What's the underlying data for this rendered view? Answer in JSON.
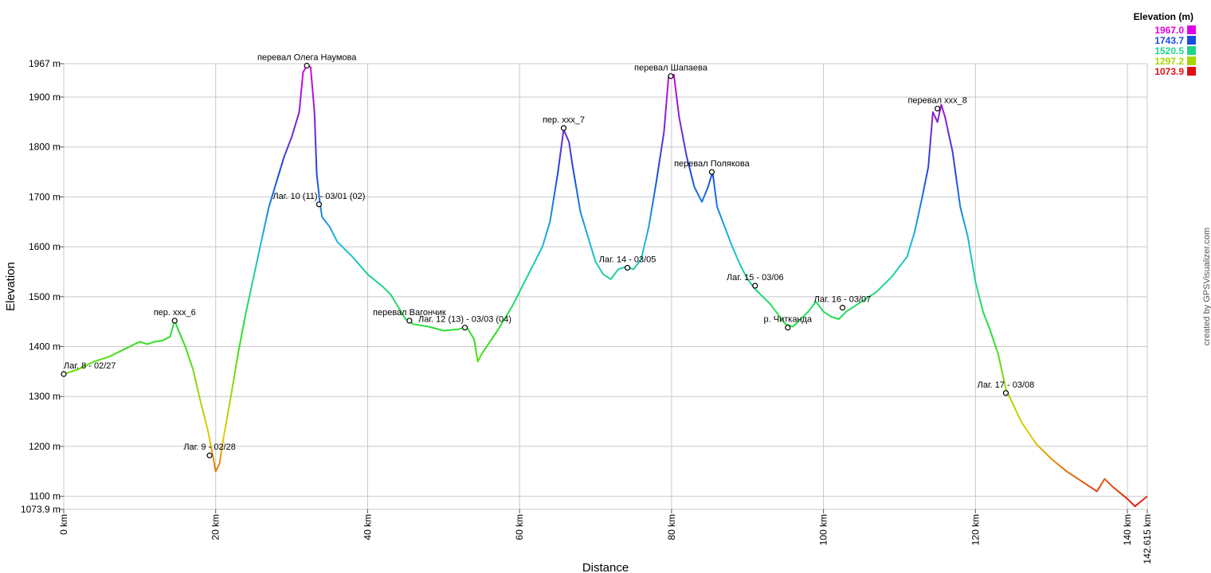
{
  "chart_data": {
    "type": "line",
    "title": "",
    "xlabel": "Distance",
    "ylabel": "Elevation",
    "x_unit": "km",
    "y_unit": "m",
    "xlim": [
      0,
      142.615
    ],
    "ylim": [
      1073.9,
      1967.0
    ],
    "x_ticks": [
      {
        "value": 0,
        "label": "0 km"
      },
      {
        "value": 20,
        "label": "20 km"
      },
      {
        "value": 40,
        "label": "40 km"
      },
      {
        "value": 60,
        "label": "60 km"
      },
      {
        "value": 80,
        "label": "80 km"
      },
      {
        "value": 100,
        "label": "100 km"
      },
      {
        "value": 120,
        "label": "120 km"
      },
      {
        "value": 140,
        "label": "140 km"
      },
      {
        "value": 142.615,
        "label": "142.615 km"
      }
    ],
    "y_ticks": [
      {
        "value": 1967.0,
        "label": "1967 m"
      },
      {
        "value": 1900,
        "label": "1900 m"
      },
      {
        "value": 1800,
        "label": "1800 m"
      },
      {
        "value": 1700,
        "label": "1700 m"
      },
      {
        "value": 1600,
        "label": "1600 m"
      },
      {
        "value": 1500,
        "label": "1500 m"
      },
      {
        "value": 1400,
        "label": "1400 m"
      },
      {
        "value": 1300,
        "label": "1300 m"
      },
      {
        "value": 1200,
        "label": "1200 m"
      },
      {
        "value": 1100,
        "label": "1100 m"
      },
      {
        "value": 1073.9,
        "label": "1073.9 m"
      }
    ],
    "grid": true,
    "legend": {
      "title": "Elevation (m)",
      "placement": "top-right",
      "entries": [
        {
          "label": "1967.0",
          "color": "#e000e0"
        },
        {
          "label": "1743.7",
          "color": "#1a4ce0"
        },
        {
          "label": "1520.5",
          "color": "#1fd688"
        },
        {
          "label": "1297.2",
          "color": "#a6d800"
        },
        {
          "label": "1073.9",
          "color": "#e01010"
        }
      ]
    },
    "series": [
      {
        "x": [
          0,
          2,
          4,
          6,
          8,
          10,
          11,
          12,
          13,
          14,
          14.6,
          15.3,
          16,
          17,
          18,
          19,
          19.7,
          20,
          20.5,
          21,
          22,
          23,
          24,
          25,
          26,
          27,
          28,
          29,
          30,
          31,
          31.5,
          32,
          32.5,
          33,
          33.3,
          33.7,
          34,
          35,
          36,
          38,
          40,
          42,
          43,
          44,
          45,
          46,
          48,
          50,
          52,
          53,
          54,
          54.5,
          55,
          57,
          59,
          61,
          63,
          64,
          65,
          65.8,
          66.5,
          67,
          68,
          69,
          70,
          71,
          72,
          73,
          74,
          75,
          76,
          77,
          78,
          79,
          79.6,
          80.3,
          81,
          82,
          83,
          84,
          84.8,
          85.4,
          86,
          87,
          88,
          89,
          90,
          91,
          93,
          95,
          96,
          98,
          99,
          100,
          101,
          102,
          103,
          105,
          107,
          109,
          111,
          112,
          113,
          113.8,
          114.4,
          115,
          115.5,
          116,
          117,
          118,
          119,
          120,
          121,
          122,
          123,
          124,
          126,
          128,
          130,
          132,
          134,
          136,
          137,
          138,
          140,
          141,
          142.615
        ],
        "y": [
          1345,
          1355,
          1370,
          1380,
          1395,
          1410,
          1405,
          1410,
          1412,
          1420,
          1452,
          1425,
          1400,
          1355,
          1290,
          1230,
          1175,
          1150,
          1165,
          1215,
          1300,
          1390,
          1470,
          1540,
          1610,
          1680,
          1730,
          1780,
          1820,
          1870,
          1950,
          1963,
          1960,
          1870,
          1745,
          1690,
          1660,
          1640,
          1610,
          1580,
          1545,
          1520,
          1505,
          1480,
          1455,
          1445,
          1440,
          1432,
          1435,
          1440,
          1415,
          1370,
          1385,
          1430,
          1480,
          1540,
          1600,
          1650,
          1745,
          1835,
          1810,
          1760,
          1670,
          1620,
          1570,
          1545,
          1535,
          1555,
          1560,
          1555,
          1575,
          1640,
          1730,
          1830,
          1940,
          1945,
          1860,
          1780,
          1720,
          1690,
          1720,
          1750,
          1680,
          1640,
          1600,
          1565,
          1535,
          1515,
          1485,
          1445,
          1440,
          1470,
          1490,
          1470,
          1460,
          1455,
          1470,
          1490,
          1510,
          1540,
          1580,
          1630,
          1700,
          1760,
          1870,
          1850,
          1885,
          1860,
          1790,
          1680,
          1620,
          1530,
          1470,
          1430,
          1385,
          1315,
          1250,
          1205,
          1175,
          1150,
          1130,
          1110,
          1135,
          1120,
          1095,
          1080,
          1100
        ]
      }
    ],
    "waypoints": [
      {
        "x": 0,
        "y": 1345,
        "label": "Лаг. 8 - 02/27"
      },
      {
        "x": 14.6,
        "y": 1452,
        "label": "пер. xxx_6"
      },
      {
        "x": 19.2,
        "y": 1182,
        "label": "Лаг. 9 - 02/28"
      },
      {
        "x": 32.0,
        "y": 1963,
        "label": "перевал Олега Наумова"
      },
      {
        "x": 33.6,
        "y": 1685,
        "label": "Лаг. 10 (11) - 03/01 (02)"
      },
      {
        "x": 45.5,
        "y": 1452,
        "label": "перевал Вагончик"
      },
      {
        "x": 52.8,
        "y": 1438,
        "label": "Лаг. 12 (13) - 03/03 (04)"
      },
      {
        "x": 65.8,
        "y": 1838,
        "label": "пер. xxx_7"
      },
      {
        "x": 74.2,
        "y": 1558,
        "label": "Лаг. 14 - 03/05"
      },
      {
        "x": 79.9,
        "y": 1942,
        "label": "перевал Шапаева"
      },
      {
        "x": 85.3,
        "y": 1750,
        "label": "перевал Полякова"
      },
      {
        "x": 91.0,
        "y": 1522,
        "label": "Лаг. 15 - 03/06"
      },
      {
        "x": 95.3,
        "y": 1438,
        "label": "р. Читканда"
      },
      {
        "x": 102.5,
        "y": 1478,
        "label": "Лаг. 16 - 03/07"
      },
      {
        "x": 115.0,
        "y": 1877,
        "label": "перевал xxx_8"
      },
      {
        "x": 124.0,
        "y": 1307,
        "label": "Лаг. 17 - 03/08"
      }
    ],
    "credit": "created by GPSVisualizer.com"
  }
}
